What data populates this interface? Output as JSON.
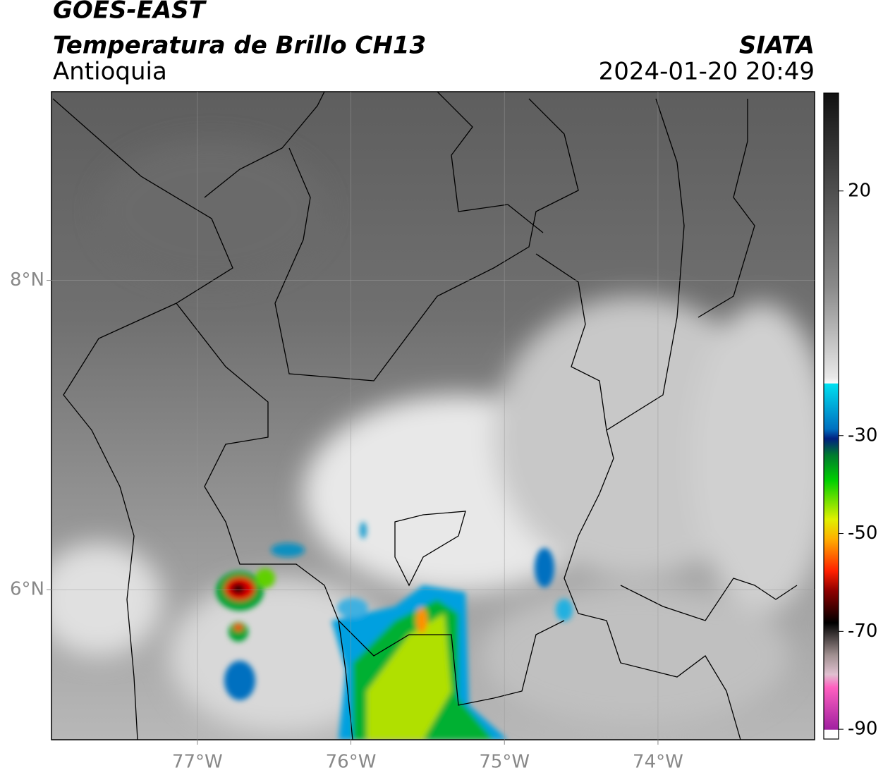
{
  "header": {
    "title": "GOES-EAST",
    "subtitle": "Temperatura de Brillo CH13",
    "region": "Antioquia",
    "source": "SIATA",
    "datetime": "2024-01-20 20:49"
  },
  "map": {
    "xlim": [
      -77.95,
      -72.98
    ],
    "ylim": [
      5.03,
      9.22
    ],
    "xticks": [
      {
        "value": -77,
        "label": "77°W"
      },
      {
        "value": -76,
        "label": "76°W"
      },
      {
        "value": -75,
        "label": "75°W"
      },
      {
        "value": -74,
        "label": "74°W"
      }
    ],
    "yticks": [
      {
        "value": 8,
        "label": "8°N"
      },
      {
        "value": 6,
        "label": "6°N"
      }
    ]
  },
  "colorbar": {
    "lim": [
      -92,
      40
    ],
    "ticks": [
      20,
      -30,
      -50,
      -70,
      -90
    ]
  }
}
